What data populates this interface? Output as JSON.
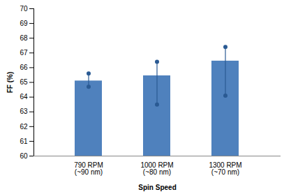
{
  "chart_data": {
    "type": "bar",
    "x_label": "Spin Speed",
    "y_label": "FF (%)",
    "categories": [
      "790 RPM\n(~90 nm)",
      "1000 RPM\n(~80 nm)",
      "1300 RPM\n(~70 nm)"
    ],
    "values": [
      65.1,
      65.45,
      66.45
    ],
    "error_low": [
      64.7,
      63.5,
      64.1
    ],
    "error_high": [
      65.6,
      66.4,
      67.4
    ],
    "color": "#4f81bd",
    "ylim": [
      60,
      70
    ],
    "yticks": [
      60,
      61,
      62,
      63,
      64,
      65,
      66,
      67,
      68,
      69,
      70
    ],
    "grid": false
  }
}
